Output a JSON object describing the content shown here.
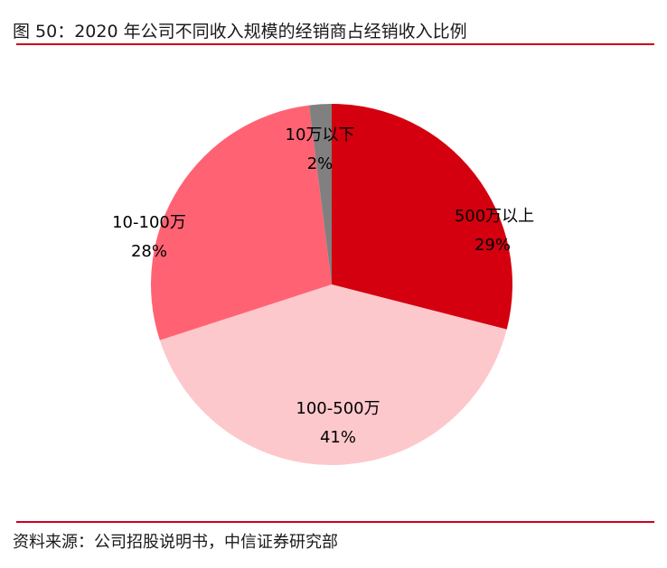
{
  "header": {
    "title": "图 50：2020 年公司不同收入规模的经销商占经销收入比例"
  },
  "footer": {
    "source": "资料来源：公司招股说明书，中信证券研究部"
  },
  "colors": {
    "rule": "#c8001e",
    "slice_500w_plus": "#d4000f",
    "slice_100_500w": "#fdc8cc",
    "slice_10_100w": "#ff6373",
    "slice_under_10w": "#808080"
  },
  "chart_data": {
    "type": "pie",
    "title": "2020 年公司不同收入规模的经销商占经销收入比例",
    "categories": [
      "500万以上",
      "100-500万",
      "10-100万",
      "10万以下"
    ],
    "values": [
      29,
      41,
      28,
      2
    ],
    "unit": "%",
    "start_angle": "12 o'clock",
    "direction": "clockwise",
    "data_labels": [
      {
        "name": "500万以上",
        "pct": "29%"
      },
      {
        "name": "100-500万",
        "pct": "41%"
      },
      {
        "name": "10-100万",
        "pct": "28%"
      },
      {
        "name": "10万以下",
        "pct": "2%"
      }
    ],
    "legend": "none"
  }
}
